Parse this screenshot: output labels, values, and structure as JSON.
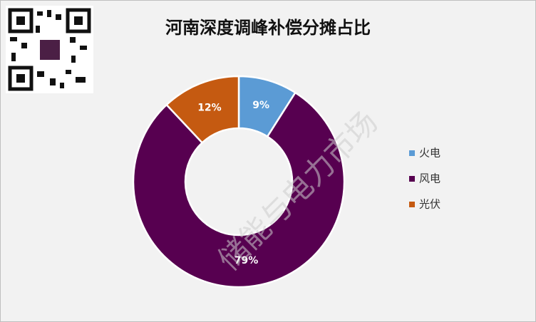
{
  "chart_data": {
    "type": "donut",
    "title": "河南深度调峰补偿分摊占比",
    "categories": [
      "火电",
      "风电",
      "光伏"
    ],
    "values": [
      9,
      79,
      12
    ],
    "value_labels": [
      "9%",
      "79%",
      "12%"
    ],
    "colors": [
      "#5b9bd5",
      "#570050",
      "#c55a11"
    ],
    "legend": "right",
    "watermark": "储能与电力市场"
  }
}
